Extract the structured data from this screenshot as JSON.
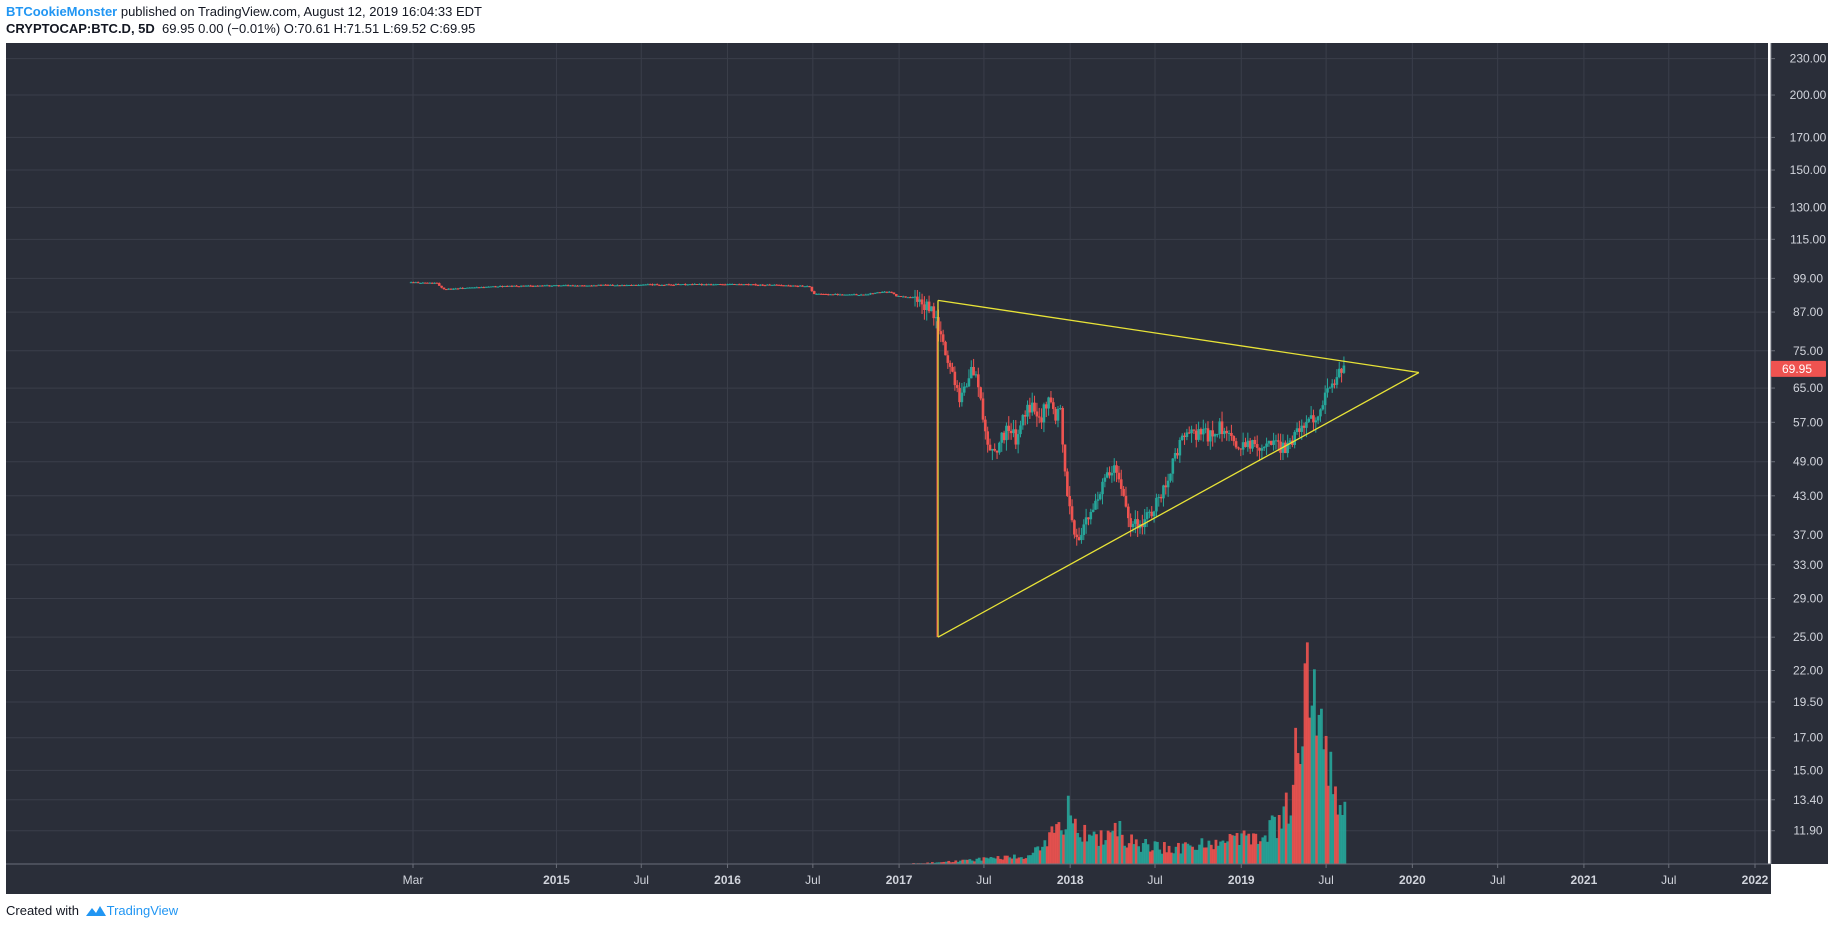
{
  "header": {
    "author": "BTCookieMonster",
    "published_text": " published on TradingView.com, August 12, 2019 16:04:33 EDT",
    "symbol": "CRYPTOCAP:BTC.D, 5D",
    "values": "69.95 0.00 (−0.01%) O:70.61 H:71.51 L:69.52 C:69.95"
  },
  "footer": {
    "created_with": "Created with",
    "brand": "TradingView"
  },
  "colors": {
    "background": "#2a2e39",
    "grid": "#3a3e4a",
    "text": "#d1d4dc",
    "up": "#26a69a",
    "down": "#ef5350",
    "trendline": "#e8e337",
    "price_tag": "#ef5350"
  },
  "chart_data": {
    "type": "candlestick",
    "title": "",
    "y_scale": "log",
    "ylim": [
      10.8,
      235
    ],
    "y_ticks": [
      "230.00",
      "200.00",
      "170.00",
      "150.00",
      "130.00",
      "115.00",
      "99.00",
      "87.00",
      "75.00",
      "65.00",
      "57.00",
      "49.00",
      "43.00",
      "37.00",
      "33.00",
      "29.00",
      "25.00",
      "22.00",
      "19.50",
      "17.00",
      "15.00",
      "13.40",
      "11.90"
    ],
    "x_tick_labels": [
      "Mar",
      "2015",
      "Jul",
      "2016",
      "Jul",
      "2017",
      "Jul",
      "2018",
      "Jul",
      "2019",
      "Jul",
      "2020",
      "Jul",
      "2021",
      "Jul",
      "2022"
    ],
    "x_tick_dates": [
      "2014-03-01",
      "2015-01-01",
      "2015-07-01",
      "2016-01-01",
      "2016-07-01",
      "2017-01-01",
      "2017-07-01",
      "2018-01-01",
      "2018-07-01",
      "2019-01-01",
      "2019-07-01",
      "2020-01-01",
      "2020-07-01",
      "2021-01-01",
      "2021-07-01",
      "2022-01-01"
    ],
    "last_price": "69.95",
    "price_path": [
      [
        "2014-02-25",
        97.5
      ],
      [
        "2014-04-20",
        97.2
      ],
      [
        "2014-05-05",
        95.0
      ],
      [
        "2014-09-01",
        96.0
      ],
      [
        "2015-01-01",
        96.3
      ],
      [
        "2015-07-01",
        96.6
      ],
      [
        "2016-01-01",
        96.8
      ],
      [
        "2016-04-01",
        96.5
      ],
      [
        "2016-06-25",
        96.0
      ],
      [
        "2016-07-01",
        93.2
      ],
      [
        "2016-10-15",
        93.0
      ],
      [
        "2016-11-20",
        93.8
      ],
      [
        "2016-12-15",
        94.0
      ],
      [
        "2016-12-25",
        92.5
      ],
      [
        "2017-02-01",
        92.0
      ],
      [
        "2017-02-25",
        89.0
      ],
      [
        "2017-03-15",
        86.5
      ],
      [
        "2017-03-25",
        82.0
      ],
      [
        "2017-04-15",
        72.0
      ],
      [
        "2017-05-01",
        67.0
      ],
      [
        "2017-05-10",
        63.0
      ],
      [
        "2017-05-25",
        66.0
      ],
      [
        "2017-06-05",
        70.0
      ],
      [
        "2017-06-20",
        66.0
      ],
      [
        "2017-07-01",
        55.0
      ],
      [
        "2017-07-15",
        51.0
      ],
      [
        "2017-08-01",
        52.0
      ],
      [
        "2017-08-20",
        56.0
      ],
      [
        "2017-09-10",
        53.0
      ],
      [
        "2017-09-25",
        59.0
      ],
      [
        "2017-10-15",
        61.0
      ],
      [
        "2017-11-01",
        58.0
      ],
      [
        "2017-11-15",
        63.0
      ],
      [
        "2017-12-01",
        58.0
      ],
      [
        "2017-12-10",
        62.0
      ],
      [
        "2017-12-20",
        47.0
      ],
      [
        "2018-01-01",
        41.0
      ],
      [
        "2018-01-10",
        36.5
      ],
      [
        "2018-01-25",
        37.5
      ],
      [
        "2018-02-15",
        40.0
      ],
      [
        "2018-03-01",
        43.0
      ],
      [
        "2018-03-20",
        46.0
      ],
      [
        "2018-04-05",
        47.5
      ],
      [
        "2018-04-25",
        43.0
      ],
      [
        "2018-05-10",
        39.0
      ],
      [
        "2018-06-01",
        38.5
      ],
      [
        "2018-06-20",
        40.0
      ],
      [
        "2018-07-10",
        42.5
      ],
      [
        "2018-08-01",
        47.0
      ],
      [
        "2018-08-20",
        51.5
      ],
      [
        "2018-09-05",
        55.0
      ],
      [
        "2018-09-20",
        54.0
      ],
      [
        "2018-10-05",
        55.0
      ],
      [
        "2018-10-25",
        54.0
      ],
      [
        "2018-11-15",
        56.0
      ],
      [
        "2018-12-01",
        54.0
      ],
      [
        "2018-12-20",
        52.0
      ],
      [
        "2019-01-10",
        53.0
      ],
      [
        "2019-02-01",
        52.0
      ],
      [
        "2019-03-01",
        53.0
      ],
      [
        "2019-04-01",
        51.5
      ],
      [
        "2019-04-25",
        54.0
      ],
      [
        "2019-05-10",
        57.0
      ],
      [
        "2019-05-25",
        56.5
      ],
      [
        "2019-06-10",
        59.0
      ],
      [
        "2019-06-25",
        62.0
      ],
      [
        "2019-07-10",
        66.0
      ],
      [
        "2019-07-25",
        68.0
      ],
      [
        "2019-08-05",
        70.5
      ],
      [
        "2019-08-12",
        69.95
      ]
    ],
    "volume_path": [
      [
        "2017-02-01",
        0.1
      ],
      [
        "2017-04-01",
        0.2
      ],
      [
        "2017-06-01",
        0.5
      ],
      [
        "2017-08-01",
        0.7
      ],
      [
        "2017-10-01",
        1.0
      ],
      [
        "2017-11-15",
        2.5
      ],
      [
        "2017-12-15",
        5.5
      ],
      [
        "2018-01-01",
        7.2
      ],
      [
        "2018-01-20",
        5.0
      ],
      [
        "2018-02-15",
        3.0
      ],
      [
        "2018-03-15",
        3.5
      ],
      [
        "2018-04-10",
        4.2
      ],
      [
        "2018-05-15",
        2.5
      ],
      [
        "2018-07-01",
        2.0
      ],
      [
        "2018-09-01",
        2.0
      ],
      [
        "2018-11-01",
        2.4
      ],
      [
        "2018-12-01",
        2.6
      ],
      [
        "2019-01-15",
        3.0
      ],
      [
        "2019-03-01",
        4.0
      ],
      [
        "2019-04-01",
        6.0
      ],
      [
        "2019-04-20",
        9.0
      ],
      [
        "2019-05-01",
        17.0
      ],
      [
        "2019-05-20",
        20.0
      ],
      [
        "2019-06-01",
        17.5
      ],
      [
        "2019-06-20",
        16.0
      ],
      [
        "2019-07-05",
        14.5
      ],
      [
        "2019-07-20",
        10.0
      ],
      [
        "2019-08-10",
        7.0
      ]
    ],
    "trendlines": [
      {
        "from": [
          "2017-03-25",
          91.0
        ],
        "to": [
          "2020-01-15",
          69.0
        ]
      },
      {
        "from": [
          "2017-03-25",
          91.0
        ],
        "to": [
          "2017-03-25",
          25.0
        ]
      },
      {
        "from": [
          "2017-03-25",
          25.0
        ],
        "to": [
          "2020-01-15",
          69.0
        ]
      }
    ]
  }
}
